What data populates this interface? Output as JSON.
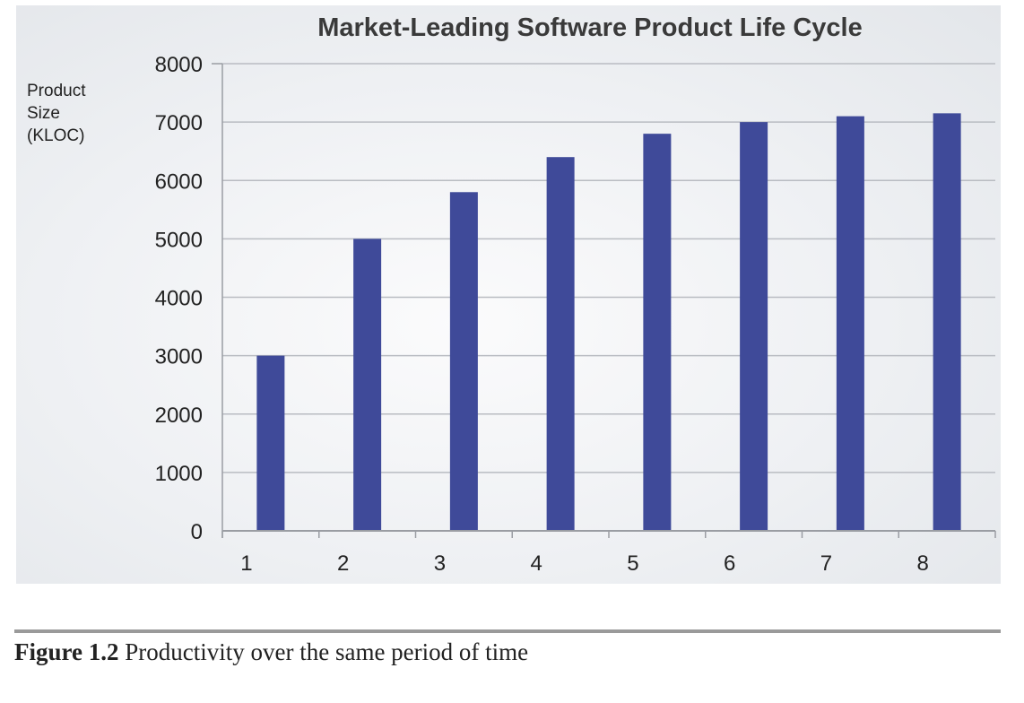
{
  "chart_data": {
    "type": "bar",
    "title": "Market-Leading Software Product Life Cycle",
    "ylabel_lines": [
      "Product",
      "Size",
      "(KLOC)"
    ],
    "xlabel": "",
    "categories": [
      "1",
      "2",
      "3",
      "4",
      "5",
      "6",
      "7",
      "8"
    ],
    "values": [
      3000,
      5000,
      5800,
      6400,
      6800,
      7000,
      7100,
      7150
    ],
    "ylim": [
      0,
      8000
    ],
    "yticks": [
      0,
      1000,
      2000,
      3000,
      4000,
      5000,
      6000,
      7000,
      8000
    ],
    "grid": true,
    "bar_color": "#3f4a99"
  },
  "caption": {
    "figure_number": "Figure 1.2",
    "text": "Productivity over the same period of time"
  }
}
